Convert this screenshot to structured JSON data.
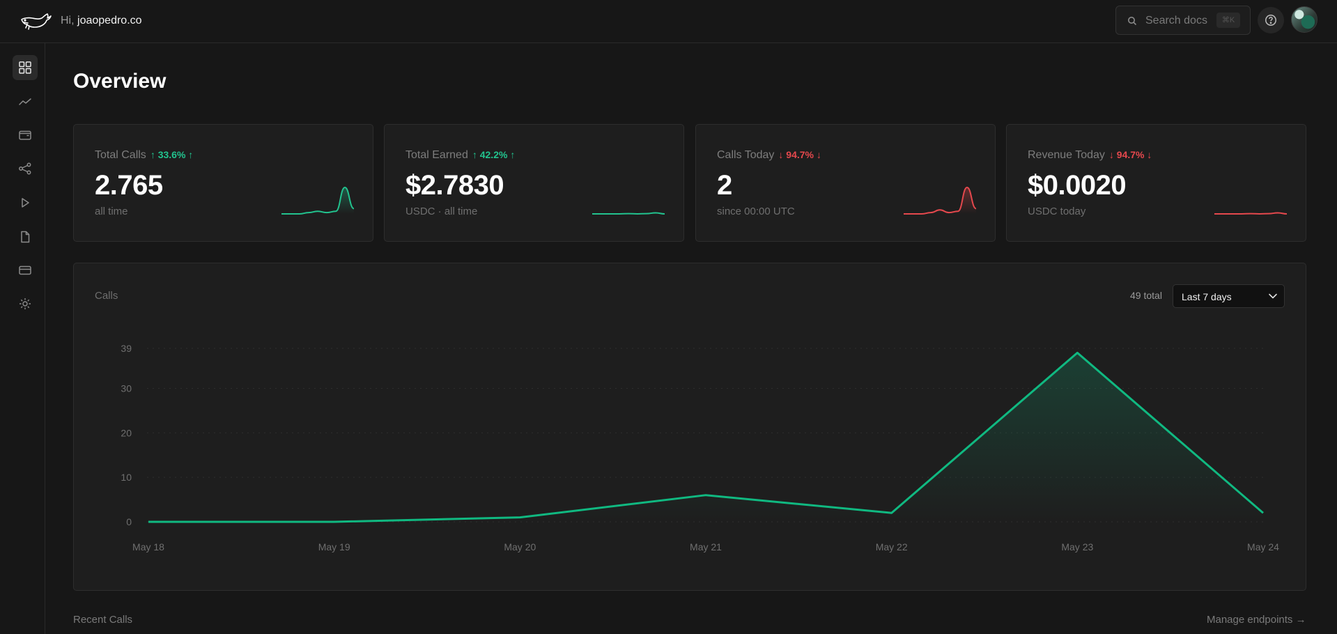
{
  "header": {
    "greeting_prefix": "Hi,",
    "username": "joaopedro.co",
    "search_placeholder": "Search docs",
    "search_shortcut": "⌘K",
    "logo_icon": "whale-icon",
    "help_icon": "question-circle-icon"
  },
  "sidebar": {
    "items": [
      {
        "name": "overview",
        "icon": "grid-icon",
        "active": true
      },
      {
        "name": "analytics",
        "icon": "trend-line-icon",
        "active": false
      },
      {
        "name": "wallet",
        "icon": "wallet-icon",
        "active": false
      },
      {
        "name": "endpoints",
        "icon": "share-nodes-icon",
        "active": false
      },
      {
        "name": "playground",
        "icon": "play-icon",
        "active": false
      },
      {
        "name": "docs",
        "icon": "document-icon",
        "active": false
      },
      {
        "name": "billing",
        "icon": "credit-card-icon",
        "active": false
      },
      {
        "name": "settings",
        "icon": "gear-icon",
        "active": false
      }
    ]
  },
  "page": {
    "title": "Overview"
  },
  "stats": [
    {
      "label": "Total Calls",
      "change": "↑ 33.6% ↑",
      "direction": "up",
      "value": "2.765",
      "sub": "all time",
      "color": "#22c38e",
      "sparkline": [
        0,
        0,
        0,
        0.05,
        0.1,
        0.05,
        0.1,
        1,
        0.2
      ]
    },
    {
      "label": "Total Earned",
      "change": "↑ 42.2% ↑",
      "direction": "up",
      "value": "$2.7830",
      "sub": "USDC · all time",
      "color": "#22c38e",
      "sparkline": [
        0,
        0,
        0,
        0,
        0.01,
        0,
        0.01,
        0.04,
        0
      ]
    },
    {
      "label": "Calls Today",
      "change": "↓ 94.7% ↓",
      "direction": "down",
      "value": "2",
      "sub": "since 00:00 UTC",
      "color": "#e5484d",
      "sparkline": [
        0,
        0,
        0,
        0.05,
        0.15,
        0.05,
        0.1,
        1,
        0.2
      ]
    },
    {
      "label": "Revenue Today",
      "change": "↓ 94.7% ↓",
      "direction": "down",
      "value": "$0.0020",
      "sub": "USDC today",
      "color": "#e5484d",
      "sparkline": [
        0,
        0,
        0,
        0,
        0.01,
        0,
        0.01,
        0.04,
        0
      ]
    }
  ],
  "calls_panel": {
    "title": "Calls",
    "total": "49 total",
    "range": "Last 7 days"
  },
  "chart_data": {
    "type": "area",
    "categories": [
      "May 18",
      "May 19",
      "May 20",
      "May 21",
      "May 22",
      "May 23",
      "May 24"
    ],
    "series": [
      {
        "values": [
          0,
          0,
          1,
          6,
          2,
          38,
          2
        ]
      }
    ],
    "yticks": [
      0,
      10,
      20,
      30,
      39
    ],
    "ylim": [
      0,
      39
    ],
    "grid": "horizontal dotted",
    "line_color": "#10b981"
  },
  "footer": {
    "recent_title": "Recent Calls",
    "manage_link": "Manage endpoints →"
  }
}
